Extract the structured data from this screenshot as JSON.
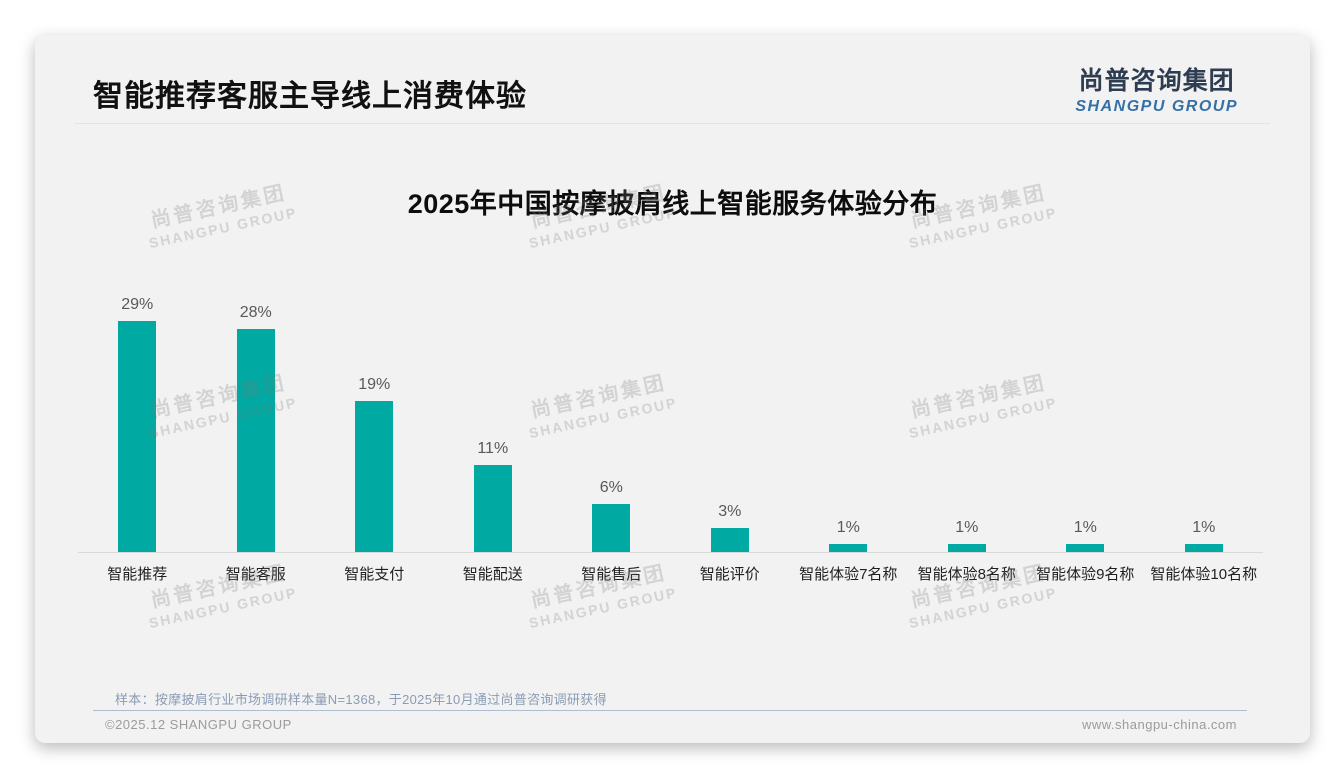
{
  "header": {
    "title": "智能推荐客服主导线上消费体验"
  },
  "logo": {
    "cn": "尚普咨询集团",
    "en": "SHANGPU GROUP",
    "cn_color": "#2e3d52",
    "en_color": "#3470a6"
  },
  "watermark": {
    "cn": "尚普咨询集团",
    "en": "SHANGPU GROUP"
  },
  "chart_data": {
    "type": "bar",
    "title": "2025年中国按摩披肩线上智能服务体验分布",
    "categories": [
      "智能推荐",
      "智能客服",
      "智能支付",
      "智能配送",
      "智能售后",
      "智能评价",
      "智能体验7名称",
      "智能体验8名称",
      "智能体验9名称",
      "智能体验10名称"
    ],
    "values": [
      29,
      28,
      19,
      11,
      6,
      3,
      1,
      1,
      1,
      1
    ],
    "value_labels": [
      "29%",
      "28%",
      "19%",
      "11%",
      "6%",
      "3%",
      "1%",
      "1%",
      "1%",
      "1%"
    ],
    "unit": "%",
    "bar_color": "#00a9a1",
    "xlabel": "",
    "ylabel": "",
    "ylim": [
      0,
      30
    ],
    "grid": false,
    "legend": false
  },
  "footnote": "样本：按摩披肩行业市场调研样本量N=1368，于2025年10月通过尚普咨询调研获得",
  "footer": {
    "left": "©2025.12 SHANGPU GROUP",
    "right": "www.shangpu-china.com"
  }
}
